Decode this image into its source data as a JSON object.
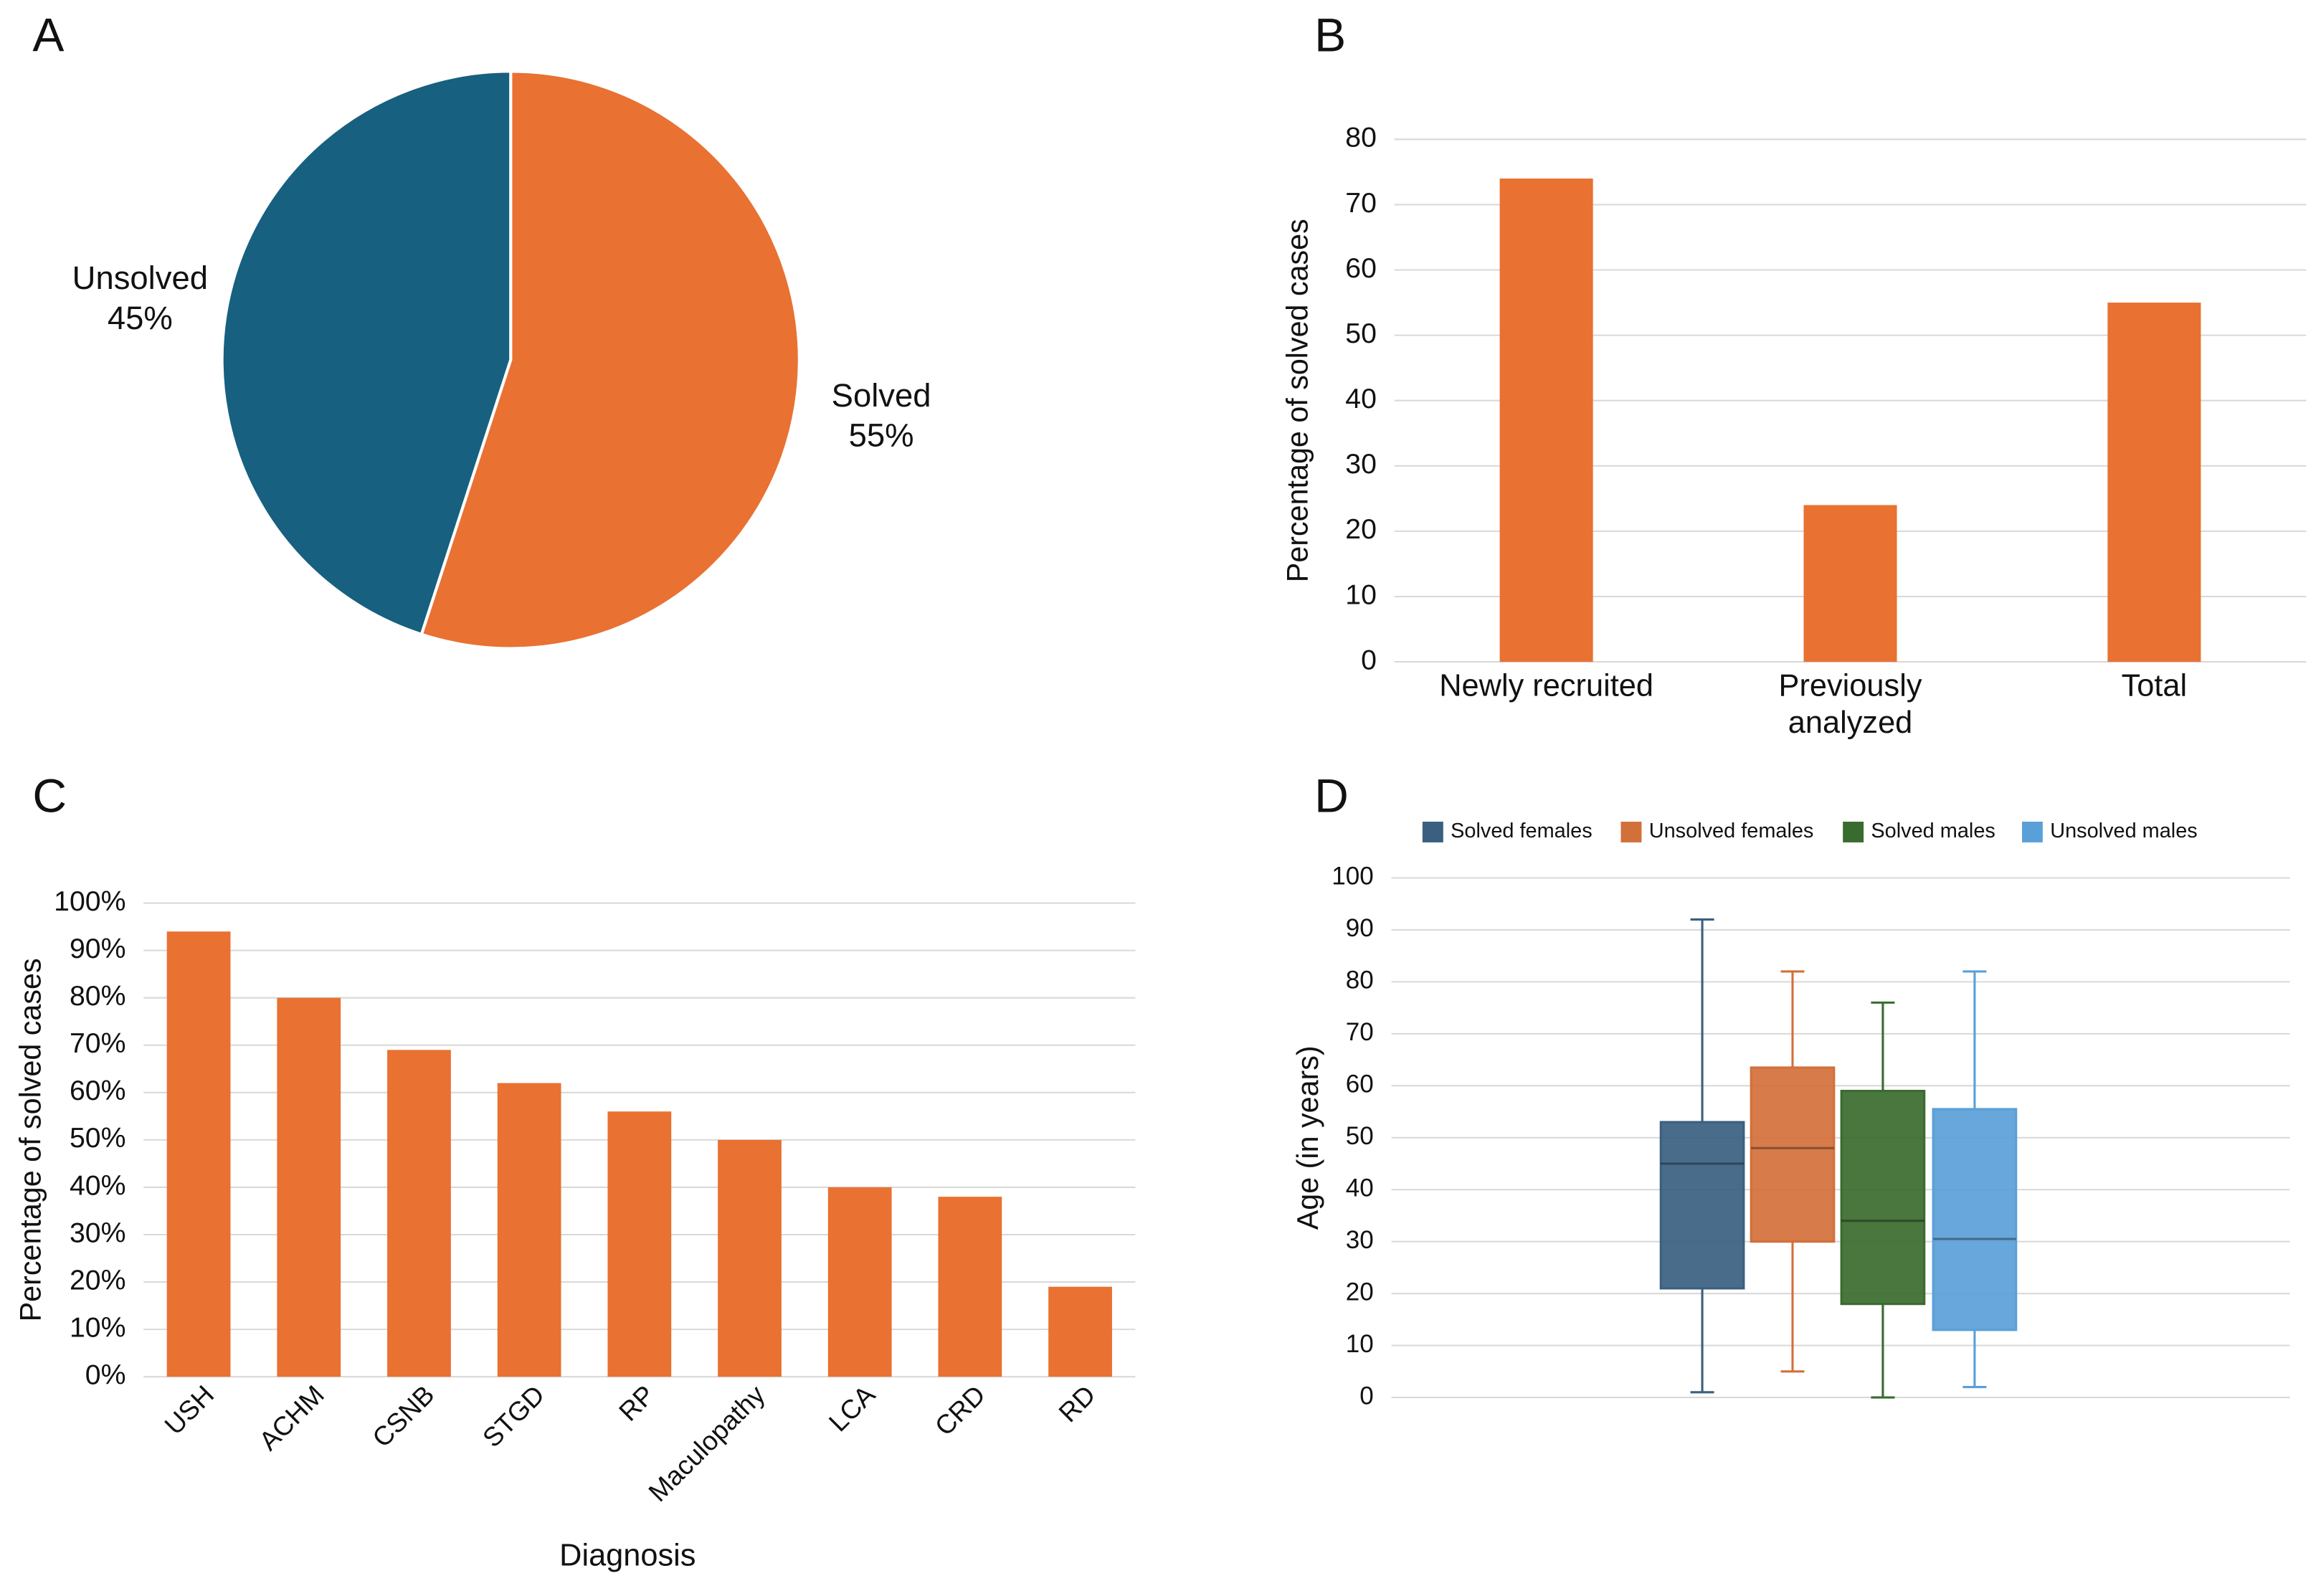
{
  "chart_data": [
    {
      "type": "pie",
      "label": "A",
      "categories": [
        "Solved",
        "Unsolved"
      ],
      "values": [
        55,
        45
      ],
      "value_labels": [
        "55%",
        "45%"
      ],
      "colors": [
        "#e97132",
        "#17607f"
      ]
    },
    {
      "type": "bar",
      "label": "B",
      "ylabel": "Percentage of solved cases",
      "categories": [
        "Newly recruited",
        "Previously analyzed",
        "Total"
      ],
      "values": [
        74,
        24,
        55
      ],
      "color": "#e97132",
      "ylim": [
        0,
        80
      ],
      "yticks": [
        0,
        10,
        20,
        30,
        40,
        50,
        60,
        70,
        80
      ],
      "grid": true
    },
    {
      "type": "bar",
      "label": "C",
      "ylabel": "Percentage of solved cases",
      "xlabel": "Diagnosis",
      "categories": [
        "USH",
        "ACHM",
        "CSNB",
        "STGD",
        "RP",
        "Maculopathy",
        "LCA",
        "CRD",
        "RD"
      ],
      "values": [
        94,
        80,
        69,
        62,
        56,
        50,
        40,
        38,
        19
      ],
      "color": "#e97132",
      "ylim": [
        0,
        100
      ],
      "yticks": [
        {
          "value": 0,
          "label": "0%"
        },
        {
          "value": 10,
          "label": "10%"
        },
        {
          "value": 20,
          "label": "20%"
        },
        {
          "value": 30,
          "label": "30%"
        },
        {
          "value": 40,
          "label": "40%"
        },
        {
          "value": 50,
          "label": "50%"
        },
        {
          "value": 60,
          "label": "60%"
        },
        {
          "value": 70,
          "label": "70%"
        },
        {
          "value": 80,
          "label": "80%"
        },
        {
          "value": 90,
          "label": "90%"
        },
        {
          "value": 100,
          "label": "100%"
        }
      ],
      "grid": true
    },
    {
      "type": "boxplot",
      "label": "D",
      "ylabel": "Age (in years)",
      "series": [
        {
          "name": "Solved females",
          "color": "#3a5f80",
          "min": 1,
          "q1": 21,
          "median": 45,
          "q3": 53,
          "max": 92
        },
        {
          "name": "Unsolved females",
          "color": "#d2703a",
          "min": 5,
          "q1": 30,
          "median": 48,
          "q3": 63.5,
          "max": 82
        },
        {
          "name": "Solved males",
          "color": "#3a6b2e",
          "min": 0,
          "q1": 18,
          "median": 34,
          "q3": 59,
          "max": 76
        },
        {
          "name": "Unsolved males",
          "color": "#5aa0d8",
          "min": 2,
          "q1": 13,
          "median": 30.5,
          "q3": 55.5,
          "max": 82
        }
      ],
      "ylim": [
        0,
        100
      ],
      "yticks": [
        0,
        10,
        20,
        30,
        40,
        50,
        60,
        70,
        80,
        90,
        100
      ],
      "grid": true,
      "legend": "top"
    }
  ]
}
